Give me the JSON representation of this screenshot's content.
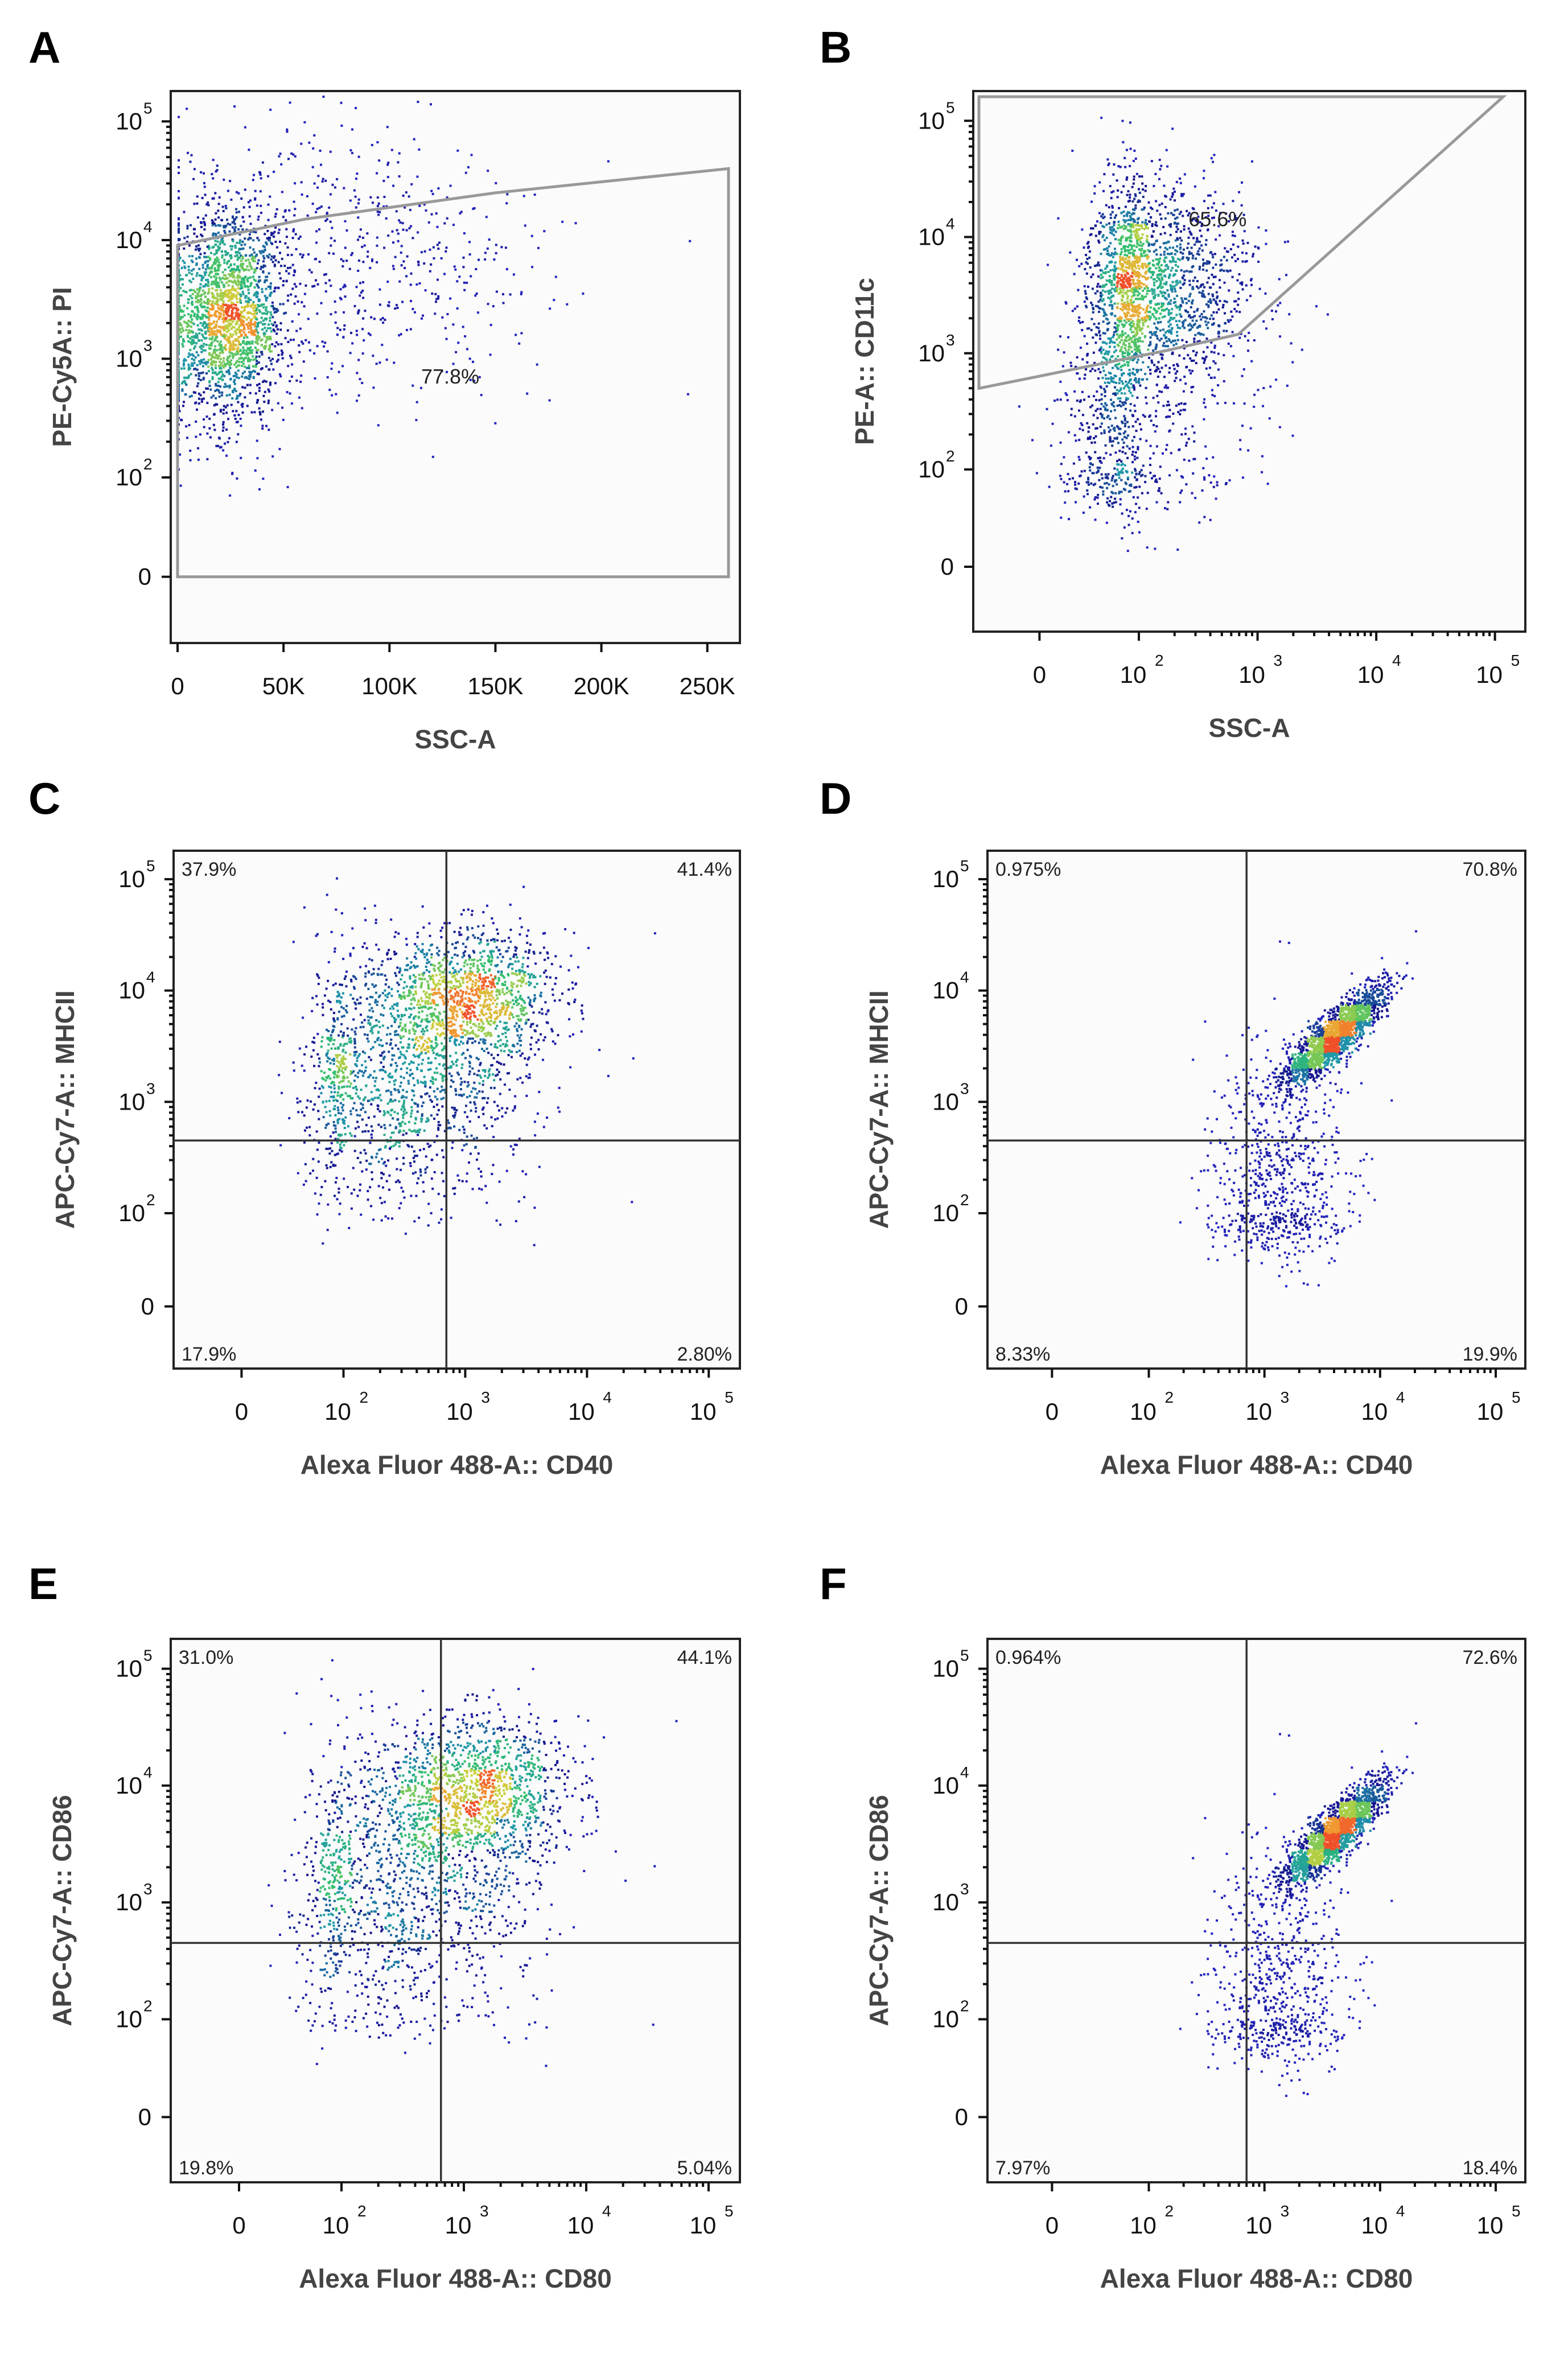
{
  "chart_data": [
    {
      "panel": "A",
      "type": "scatter",
      "plot_style": "density dot plot",
      "xlabel": "SSC-A",
      "ylabel": "PE-Cy5A:: PI",
      "xscale": "linear",
      "yscale": "biexponential",
      "xlim": [
        0,
        262144
      ],
      "x_ticks": [
        {
          "value": 0,
          "label": "0"
        },
        {
          "value": 50000,
          "label": "50K"
        },
        {
          "value": 100000,
          "label": "100K"
        },
        {
          "value": 150000,
          "label": "150K"
        },
        {
          "value": 200000,
          "label": "200K"
        },
        {
          "value": 250000,
          "label": "250K"
        }
      ],
      "y_ticks": [
        {
          "value": 0,
          "base": "0",
          "exp": ""
        },
        {
          "value": 100,
          "base": "10",
          "exp": "2"
        },
        {
          "value": 1000,
          "base": "10",
          "exp": "3"
        },
        {
          "value": 10000,
          "base": "10",
          "exp": "4"
        },
        {
          "value": 100000,
          "base": "10",
          "exp": "5"
        }
      ],
      "gate": {
        "label": "77.8%",
        "percent": 77.8,
        "vertices_data": [
          [
            0,
            0
          ],
          [
            0,
            9000
          ],
          [
            60000,
            15000
          ],
          [
            150000,
            25000
          ],
          [
            260000,
            40000
          ],
          [
            260000,
            0
          ]
        ]
      },
      "populations": [
        {
          "x_mean": 22000,
          "x_sd": 14000,
          "y_log_mean": 3.35,
          "y_log_sd": 0.45,
          "weight": 0.75
        },
        {
          "x_mean": 80000,
          "x_sd": 45000,
          "y_log_mean": 3.8,
          "y_log_sd": 0.55,
          "weight": 0.25
        }
      ]
    },
    {
      "panel": "B",
      "type": "scatter",
      "plot_style": "density dot plot",
      "xlabel": "SSC-A",
      "ylabel": "PE-A:: CD11c",
      "xscale": "biexponential",
      "yscale": "biexponential",
      "x_ticks": [
        {
          "value": 0,
          "base": "0",
          "exp": ""
        },
        {
          "value": 100,
          "base": "10",
          "exp": "2"
        },
        {
          "value": 1000,
          "base": "10",
          "exp": "3"
        },
        {
          "value": 10000,
          "base": "10",
          "exp": "4"
        },
        {
          "value": 100000,
          "base": "10",
          "exp": "5"
        }
      ],
      "y_ticks": [
        {
          "value": 0,
          "base": "0",
          "exp": ""
        },
        {
          "value": 100,
          "base": "10",
          "exp": "2"
        },
        {
          "value": 1000,
          "base": "10",
          "exp": "3"
        },
        {
          "value": 10000,
          "base": "10",
          "exp": "4"
        },
        {
          "value": 100000,
          "base": "10",
          "exp": "5"
        }
      ],
      "gate": {
        "label": "65.6%",
        "percent": 65.6
      },
      "populations": [
        {
          "x_log_mean": 2.0,
          "x_log_sd": 0.45,
          "y_log_mean": 3.6,
          "y_log_sd": 0.45,
          "weight": 0.7
        },
        {
          "x_log_mean": 1.6,
          "x_log_sd": 0.6,
          "y_log_mean": 2.5,
          "y_log_sd": 0.7,
          "weight": 0.3
        }
      ]
    },
    {
      "panel": "C",
      "type": "scatter",
      "plot_style": "density dot plot with quadrant gates",
      "xlabel": "Alexa Fluor 488-A:: CD40",
      "ylabel": "APC-Cy7-A:: MHCII",
      "xscale": "biexponential",
      "yscale": "biexponential",
      "x_ticks": [
        {
          "value": 0,
          "base": "0",
          "exp": ""
        },
        {
          "value": 100,
          "base": "10",
          "exp": "2"
        },
        {
          "value": 1000,
          "base": "10",
          "exp": "3"
        },
        {
          "value": 10000,
          "base": "10",
          "exp": "4"
        },
        {
          "value": 100000,
          "base": "10",
          "exp": "5"
        }
      ],
      "y_ticks": [
        {
          "value": 0,
          "base": "0",
          "exp": ""
        },
        {
          "value": 100,
          "base": "10",
          "exp": "2"
        },
        {
          "value": 1000,
          "base": "10",
          "exp": "3"
        },
        {
          "value": 10000,
          "base": "10",
          "exp": "4"
        },
        {
          "value": 100000,
          "base": "10",
          "exp": "5"
        }
      ],
      "quadrant_threshold": {
        "x": 700,
        "y": 450
      },
      "quadrants": {
        "upper_left": "37.9%",
        "upper_right": "41.4%",
        "lower_left": "17.9%",
        "lower_right": "2.80%"
      },
      "populations": [
        {
          "x_log_mean": 3.05,
          "x_log_sd": 0.35,
          "y_log_mean": 3.95,
          "y_log_sd": 0.3,
          "weight": 0.45
        },
        {
          "x_log_mean": 2.4,
          "x_log_sd": 0.55,
          "y_log_mean": 3.2,
          "y_log_sd": 0.55,
          "weight": 0.55
        }
      ]
    },
    {
      "panel": "D",
      "type": "scatter",
      "plot_style": "density dot plot with quadrant gates",
      "xlabel": "Alexa Fluor 488-A:: CD40",
      "ylabel": "APC-Cy7-A:: MHCII",
      "xscale": "biexponential",
      "yscale": "biexponential",
      "x_ticks": [
        {
          "value": 0,
          "base": "0",
          "exp": ""
        },
        {
          "value": 100,
          "base": "10",
          "exp": "2"
        },
        {
          "value": 1000,
          "base": "10",
          "exp": "3"
        },
        {
          "value": 10000,
          "base": "10",
          "exp": "4"
        },
        {
          "value": 100000,
          "base": "10",
          "exp": "5"
        }
      ],
      "y_ticks": [
        {
          "value": 0,
          "base": "0",
          "exp": ""
        },
        {
          "value": 100,
          "base": "10",
          "exp": "2"
        },
        {
          "value": 1000,
          "base": "10",
          "exp": "3"
        },
        {
          "value": 10000,
          "base": "10",
          "exp": "4"
        },
        {
          "value": 100000,
          "base": "10",
          "exp": "5"
        }
      ],
      "quadrant_threshold": {
        "x": 700,
        "y": 450
      },
      "quadrants": {
        "upper_left": "0.975%",
        "upper_right": "70.8%",
        "lower_left": "8.33%",
        "lower_right": "19.9%"
      },
      "populations": [
        {
          "x_log_mean": 3.6,
          "x_log_sd": 0.22,
          "y_log_mean": 3.6,
          "y_log_sd": 0.22,
          "weight": 0.72,
          "correlated": true
        },
        {
          "x_log_mean": 3.1,
          "x_log_sd": 0.3,
          "y_log_mean": 2.3,
          "y_log_sd": 0.6,
          "weight": 0.28
        }
      ]
    },
    {
      "panel": "E",
      "type": "scatter",
      "plot_style": "density dot plot with quadrant gates",
      "xlabel": "Alexa Fluor 488-A:: CD80",
      "ylabel": "APC-Cy7-A:: CD86",
      "xscale": "biexponential",
      "yscale": "biexponential",
      "x_ticks": [
        {
          "value": 0,
          "base": "0",
          "exp": ""
        },
        {
          "value": 100,
          "base": "10",
          "exp": "2"
        },
        {
          "value": 1000,
          "base": "10",
          "exp": "3"
        },
        {
          "value": 10000,
          "base": "10",
          "exp": "4"
        },
        {
          "value": 100000,
          "base": "10",
          "exp": "5"
        }
      ],
      "y_ticks": [
        {
          "value": 0,
          "base": "0",
          "exp": ""
        },
        {
          "value": 100,
          "base": "10",
          "exp": "2"
        },
        {
          "value": 1000,
          "base": "10",
          "exp": "3"
        },
        {
          "value": 10000,
          "base": "10",
          "exp": "4"
        },
        {
          "value": 100000,
          "base": "10",
          "exp": "5"
        }
      ],
      "quadrant_threshold": {
        "x": 650,
        "y": 450
      },
      "quadrants": {
        "upper_left": "31.0%",
        "upper_right": "44.1%",
        "lower_left": "19.8%",
        "lower_right": "5.04%"
      },
      "populations": [
        {
          "x_log_mean": 3.1,
          "x_log_sd": 0.38,
          "y_log_mean": 3.95,
          "y_log_sd": 0.32,
          "weight": 0.5
        },
        {
          "x_log_mean": 2.4,
          "x_log_sd": 0.6,
          "y_log_mean": 3.1,
          "y_log_sd": 0.6,
          "weight": 0.5
        }
      ]
    },
    {
      "panel": "F",
      "type": "scatter",
      "plot_style": "density dot plot with quadrant gates",
      "xlabel": "Alexa Fluor 488-A:: CD80",
      "ylabel": "APC-Cy7-A:: CD86",
      "xscale": "biexponential",
      "yscale": "biexponential",
      "x_ticks": [
        {
          "value": 0,
          "base": "0",
          "exp": ""
        },
        {
          "value": 100,
          "base": "10",
          "exp": "2"
        },
        {
          "value": 1000,
          "base": "10",
          "exp": "3"
        },
        {
          "value": 10000,
          "base": "10",
          "exp": "4"
        },
        {
          "value": 100000,
          "base": "10",
          "exp": "5"
        }
      ],
      "y_ticks": [
        {
          "value": 0,
          "base": "0",
          "exp": ""
        },
        {
          "value": 100,
          "base": "10",
          "exp": "2"
        },
        {
          "value": 1000,
          "base": "10",
          "exp": "3"
        },
        {
          "value": 10000,
          "base": "10",
          "exp": "4"
        },
        {
          "value": 100000,
          "base": "10",
          "exp": "5"
        }
      ],
      "quadrant_threshold": {
        "x": 700,
        "y": 450
      },
      "quadrants": {
        "upper_left": "0.964%",
        "upper_right": "72.6%",
        "lower_left": "7.97%",
        "lower_right": "18.4%"
      },
      "populations": [
        {
          "x_log_mean": 3.6,
          "x_log_sd": 0.22,
          "y_log_mean": 3.6,
          "y_log_sd": 0.22,
          "weight": 0.74,
          "correlated": true
        },
        {
          "x_log_mean": 3.1,
          "x_log_sd": 0.3,
          "y_log_mean": 2.3,
          "y_log_sd": 0.6,
          "weight": 0.26
        }
      ]
    }
  ],
  "colors": {
    "dot_low": "#1a1aa8",
    "dot_mid": "#2fbf71",
    "dot_high": "#f2a33a",
    "axis": "#222222",
    "gate": "#999999"
  }
}
